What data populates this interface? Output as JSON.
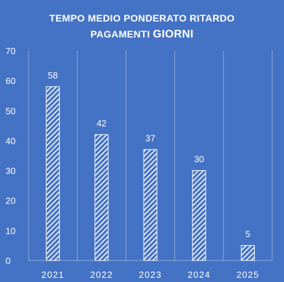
{
  "chart_data": {
    "type": "bar",
    "title_line1": "TEMPO MEDIO PONDERATO RITARDO",
    "title_line2_prefix": "PAGAMENTI ",
    "title_line2_emphasis": "GIORNI",
    "categories": [
      "2021",
      "2022",
      "2023",
      "2024",
      "2025"
    ],
    "values": [
      58,
      42,
      37,
      30,
      5
    ],
    "ylim": [
      0,
      70
    ],
    "yticks": [
      0,
      10,
      20,
      30,
      40,
      50,
      60,
      70
    ],
    "grid": "vertical category separators",
    "bar_style": "white diagonal hatch",
    "legend": "none"
  },
  "colors": {
    "background": "#4472C4",
    "text": "#FFFFFF",
    "axis_text": "#FFFFFF",
    "bar": "#FFFFFF",
    "grid": "#8EA9DB"
  }
}
